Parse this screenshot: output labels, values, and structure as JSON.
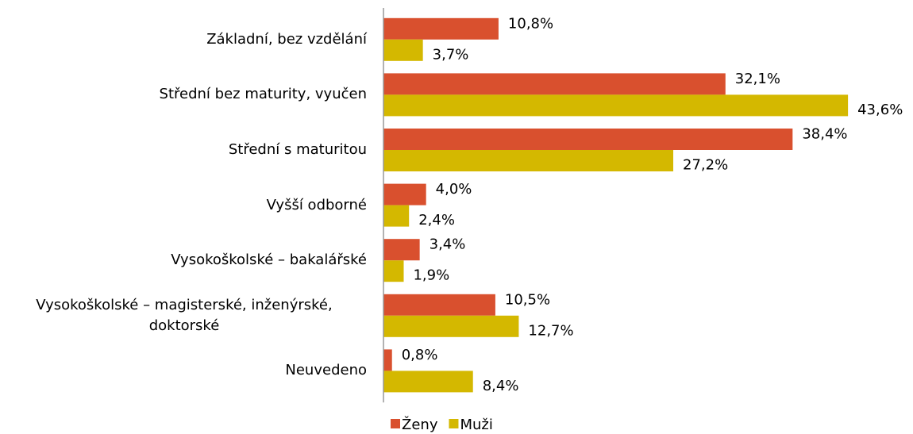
{
  "chart_data": {
    "type": "bar",
    "orientation": "horizontal",
    "categories": [
      "Základní, bez vzdělání",
      "Střední bez maturity, vyučen",
      "Střední s maturitou",
      "Vyšší odborné",
      "Vysokoškolské – bakalářské",
      "Vysokoškolské – magisterské, inženýrské, doktorské",
      "Neuvedeno"
    ],
    "series": [
      {
        "name": "Ženy",
        "color": "#d9502e",
        "values": [
          10.8,
          32.1,
          38.4,
          4.0,
          3.4,
          10.5,
          0.8
        ],
        "value_labels": [
          "10,8%",
          "32,1%",
          "38,4%",
          "4,0%",
          "3,4%",
          "10,5%",
          "0,8%"
        ]
      },
      {
        "name": "Muži",
        "color": "#d4b800",
        "values": [
          3.7,
          43.6,
          27.2,
          2.4,
          1.9,
          12.7,
          8.4
        ],
        "value_labels": [
          "3,7%",
          "43,6%",
          "27,2%",
          "2,4%",
          "1,9%",
          "12,7%",
          "8,4%"
        ]
      }
    ],
    "legend": "bottom"
  }
}
